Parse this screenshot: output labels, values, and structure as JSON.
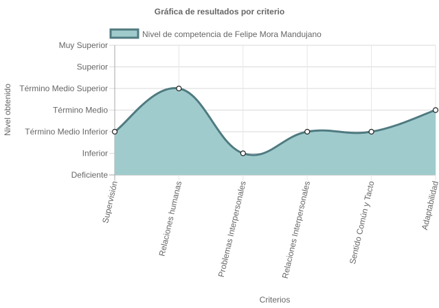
{
  "chart_data": {
    "type": "area",
    "title": "Gráfica de resultados por criterio",
    "xlabel": "Criterios",
    "ylabel": "Nivel obtenido",
    "y_levels": [
      "Deficiente",
      "Inferior",
      "Término Medio Inferior",
      "Término Medio",
      "Término Medio Superior",
      "Superior",
      "Muy Superior"
    ],
    "categories": [
      "Supervisión",
      "Relaciones humanas",
      "Problemas Interpersonales",
      "Relaciones Interpersonales",
      "Sentido Común y Tacto",
      "Adaptabilidad"
    ],
    "ylim": [
      0,
      6
    ],
    "series": [
      {
        "name": "Nivel de competencia de Felipe Mora Mandujano",
        "values": [
          2,
          4,
          1,
          2,
          2,
          3
        ],
        "fill_color": "#a0cbcd",
        "line_color": "#4f7a80"
      }
    ],
    "grid": true,
    "legend": "top"
  }
}
